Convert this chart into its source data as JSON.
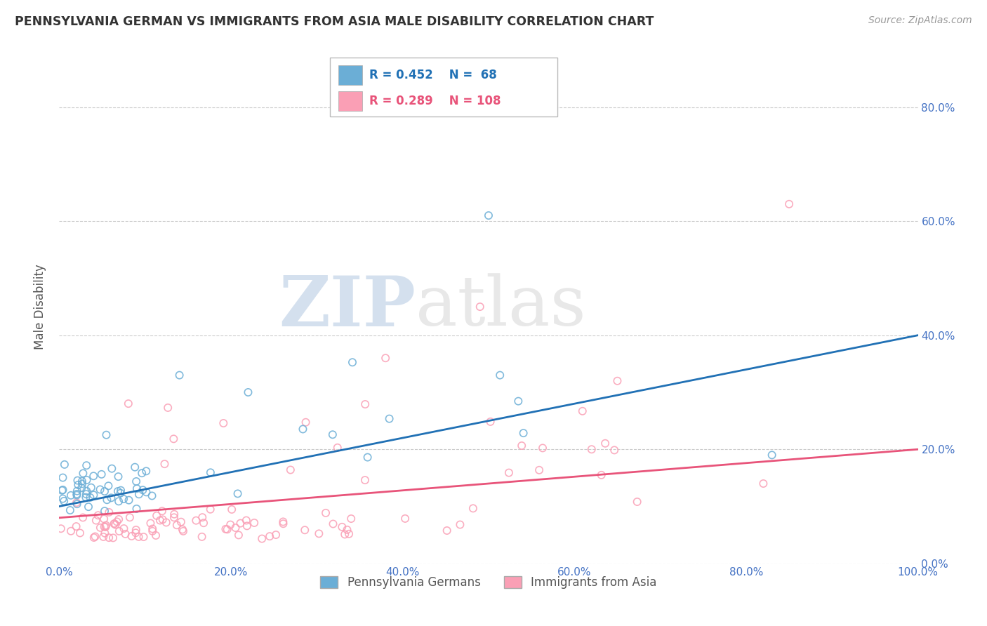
{
  "title": "PENNSYLVANIA GERMAN VS IMMIGRANTS FROM ASIA MALE DISABILITY CORRELATION CHART",
  "source": "Source: ZipAtlas.com",
  "ylabel": "Male Disability",
  "legend_label1": "Pennsylvania Germans",
  "legend_label2": "Immigrants from Asia",
  "R1": 0.452,
  "N1": 68,
  "R2": 0.289,
  "N2": 108,
  "color1": "#6baed6",
  "color2": "#fa9fb5",
  "line_color1": "#2171b5",
  "line_color2": "#e8547a",
  "xlim": [
    0.0,
    1.0
  ],
  "ylim": [
    0.0,
    0.9
  ],
  "yticks": [
    0.0,
    0.2,
    0.4,
    0.6,
    0.8
  ],
  "ytick_labels": [
    "0.0%",
    "20.0%",
    "40.0%",
    "60.0%",
    "80.0%"
  ],
  "xticks": [
    0.0,
    0.2,
    0.4,
    0.6,
    0.8,
    1.0
  ],
  "xtick_labels": [
    "0.0%",
    "20.0%",
    "40.0%",
    "60.0%",
    "80.0%",
    "100.0%"
  ],
  "background_color": "#ffffff",
  "grid_color": "#cccccc",
  "watermark_zip": "ZIP",
  "watermark_atlas": "atlas",
  "title_color": "#333333",
  "axis_label_color": "#555555",
  "tick_color": "#4472c4",
  "line1_x0": 0.0,
  "line1_y0": 0.1,
  "line1_x1": 1.0,
  "line1_y1": 0.4,
  "line2_x0": 0.0,
  "line2_y0": 0.08,
  "line2_x1": 1.0,
  "line2_y1": 0.2
}
